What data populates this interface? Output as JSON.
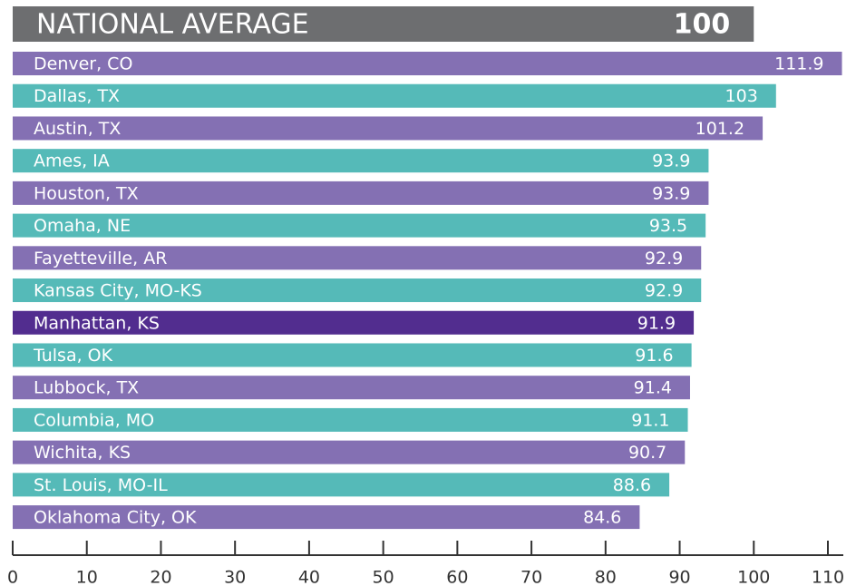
{
  "chart_data": {
    "type": "bar",
    "reference": {
      "label": "NATIONAL AVERAGE",
      "value": 100,
      "color": "#6d6e70"
    },
    "categories": [
      "Denver, CO",
      "Dallas, TX",
      "Austin, TX",
      "Ames, IA",
      "Houston, TX",
      "Omaha, NE",
      "Fayetteville, AR",
      "Kansas City, MO-KS",
      "Manhattan, KS",
      "Tulsa, OK",
      "Lubbock, TX",
      "Columbia, MO",
      "Wichita, KS",
      "St. Louis, MO-IL",
      "Oklahoma City, OK"
    ],
    "values": [
      111.9,
      103,
      101.2,
      93.9,
      93.9,
      93.5,
      92.9,
      92.9,
      91.9,
      91.6,
      91.4,
      91.1,
      90.7,
      88.6,
      84.6
    ],
    "colors": [
      "#8470b3",
      "#55bab8",
      "#8470b3",
      "#55bab8",
      "#8470b3",
      "#55bab8",
      "#8470b3",
      "#55bab8",
      "#522d8f",
      "#55bab8",
      "#8470b3",
      "#55bab8",
      "#8470b3",
      "#55bab8",
      "#8470b3"
    ],
    "xlim": [
      0,
      110
    ],
    "xticks": [
      0,
      10,
      20,
      30,
      40,
      50,
      60,
      70,
      80,
      90,
      100,
      110
    ]
  }
}
